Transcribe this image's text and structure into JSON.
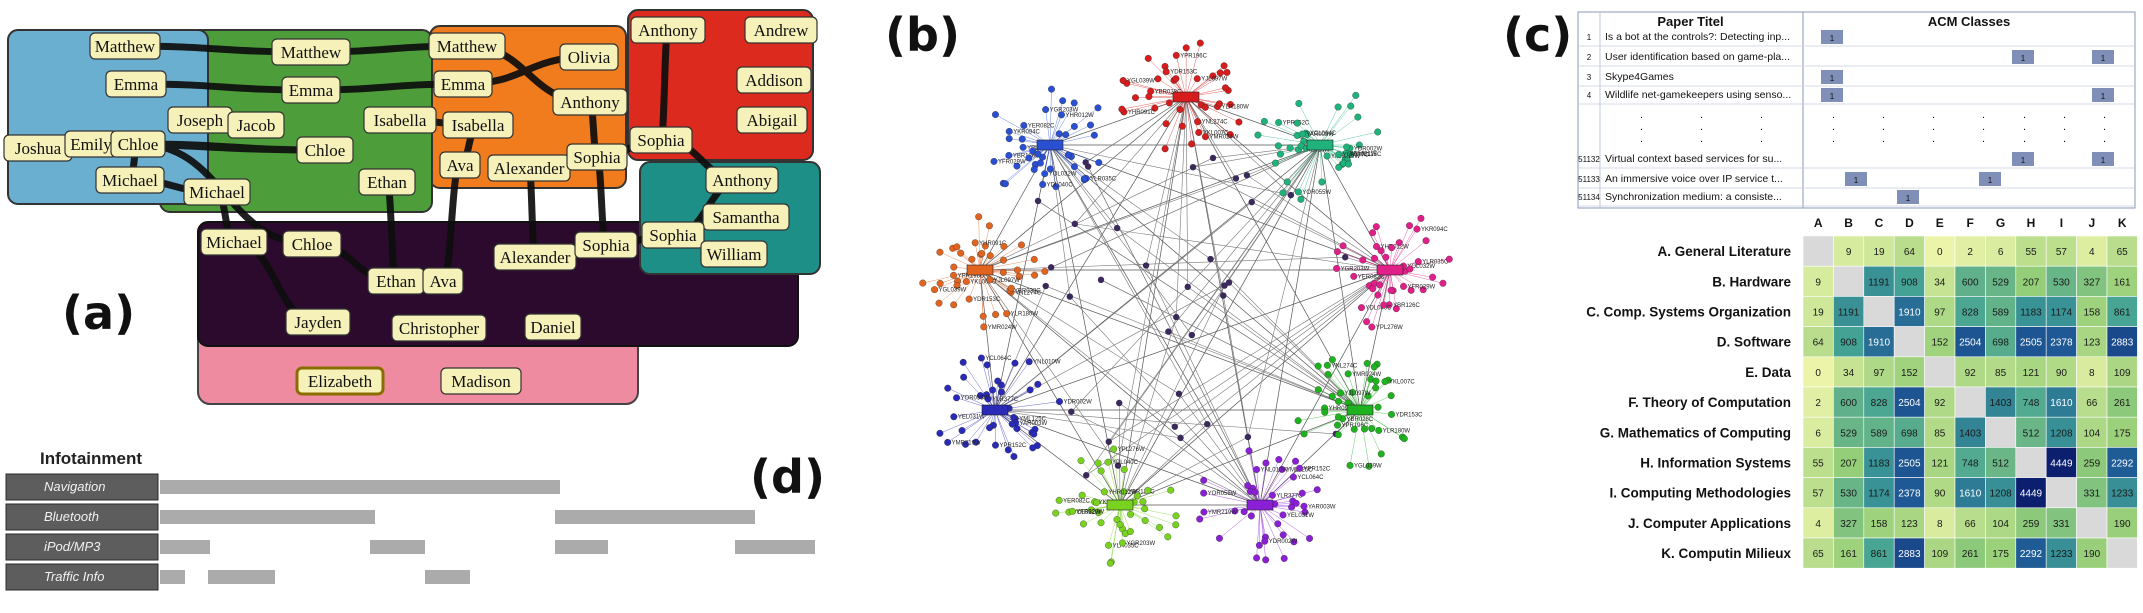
{
  "panel_letters": {
    "a": "(a)",
    "b": "(b)",
    "c": "(c)",
    "d": "(d)"
  },
  "panel_a": {
    "names": [
      "Matthew",
      "Emma",
      "Joshua",
      "Emily",
      "Chloe",
      "Michael",
      "Matthew",
      "Emma",
      "Joseph",
      "Jacob",
      "Chloe",
      "Michael",
      "Isabella",
      "Ethan",
      "Matthew",
      "Emma",
      "Olivia",
      "Isabella",
      "Anthony",
      "Ava",
      "Alexander",
      "Sophia",
      "Anthony",
      "Andrew",
      "Addison",
      "Abigail",
      "Sophia",
      "Anthony",
      "Samantha",
      "Sophia",
      "William",
      "Michael",
      "Chloe",
      "Ethan",
      "Ava",
      "Alexander",
      "Sophia",
      "Jayden",
      "Christopher",
      "Daniel",
      "Elizabeth",
      "Madison"
    ]
  },
  "panel_b": {
    "cluster_colors": [
      "#d61c1c",
      "#2b4fd1",
      "#1fb27a",
      "#e0631f",
      "#e01f88",
      "#2a2ab8",
      "#1fb21f",
      "#78d21f",
      "#8a1fd6"
    ],
    "node_labels": [
      "YPR196C",
      "YNL274C",
      "YBR028C",
      "YHR091C",
      "YGL039W",
      "YDR153C",
      "YLR180W",
      "YKL007C",
      "YMR024W",
      "YJL097W",
      "YPL276W",
      "YBR126C",
      "YLR035C",
      "YGR203W",
      "YHR012W",
      "YOL032W",
      "YDL040C",
      "YKR094C",
      "YER082C",
      "YFR029W",
      "YML125C",
      "YNL010W",
      "YPR152C",
      "YCL064C",
      "YMR219W",
      "YDR002W",
      "YAR003W",
      "YEL031W",
      "YLR377C",
      "YOR055W"
    ]
  },
  "panel_c": {
    "table_headers": {
      "title": "Paper Titel",
      "classes": "ACM Classes"
    },
    "papers": [
      {
        "id": "1",
        "title": "Is a bot at the controls?: Detecting inp..."
      },
      {
        "id": "2",
        "title": "User identification based on game-pla..."
      },
      {
        "id": "3",
        "title": "Skype4Games"
      },
      {
        "id": "4",
        "title": "Wildlife net-gamekeepers using senso..."
      },
      {
        "id": "51132",
        "title": "Virtual context based services for su..."
      },
      {
        "id": "51133",
        "title": "An immersive voice over IP service t..."
      },
      {
        "id": "51134",
        "title": "Synchronization medium: a consiste..."
      }
    ],
    "ellipsis": ".",
    "matrix_cols": [
      "A",
      "B",
      "C",
      "D",
      "E",
      "F",
      "G",
      "H",
      "I",
      "J",
      "K"
    ],
    "matrix_rows": [
      "A. General Literature",
      "B. Hardware",
      "C. Comp. Systems Organization",
      "D. Software",
      "E. Data",
      "F. Theory of Computation",
      "G. Mathematics of Computing",
      "H. Information Systems",
      "I. Computing Methodologies",
      "J. Computer Applications",
      "K. Computin Milieux"
    ],
    "matrix_values": [
      [
        null,
        9,
        19,
        64,
        0,
        2,
        6,
        55,
        57,
        4,
        65
      ],
      [
        9,
        null,
        1191,
        908,
        34,
        600,
        529,
        207,
        530,
        327,
        161
      ],
      [
        19,
        1191,
        null,
        1910,
        97,
        828,
        589,
        1183,
        1174,
        158,
        861
      ],
      [
        64,
        908,
        1910,
        null,
        152,
        2504,
        698,
        2505,
        2378,
        123,
        2883
      ],
      [
        0,
        34,
        97,
        152,
        null,
        92,
        85,
        121,
        90,
        8,
        109
      ],
      [
        2,
        600,
        828,
        2504,
        92,
        null,
        1403,
        748,
        1610,
        66,
        261
      ],
      [
        6,
        529,
        589,
        698,
        85,
        1403,
        null,
        512,
        1208,
        104,
        175
      ],
      [
        55,
        207,
        1183,
        2505,
        121,
        748,
        512,
        null,
        4449,
        259,
        2292
      ],
      [
        57,
        530,
        1174,
        2378,
        90,
        1610,
        1208,
        4449,
        null,
        331,
        1233
      ],
      [
        4,
        327,
        158,
        123,
        8,
        66,
        104,
        259,
        331,
        null,
        190
      ],
      [
        65,
        161,
        861,
        2883,
        109,
        261,
        175,
        2292,
        1233,
        190,
        null
      ]
    ]
  },
  "panel_d": {
    "header": "Infotainment",
    "rows": [
      "Navigation",
      "Bluetooth",
      "iPod/MP3",
      "Traffic Info"
    ]
  },
  "colors": {
    "set_blue": "#6aaed0",
    "set_green": "#4d9e3a",
    "set_orange": "#f07c1e",
    "set_red": "#dd2a1e",
    "set_teal": "#1e8f86",
    "set_dark": "#2c0a2e",
    "set_pink": "#ef8ba0",
    "name_fill": "#f6f1b8"
  }
}
